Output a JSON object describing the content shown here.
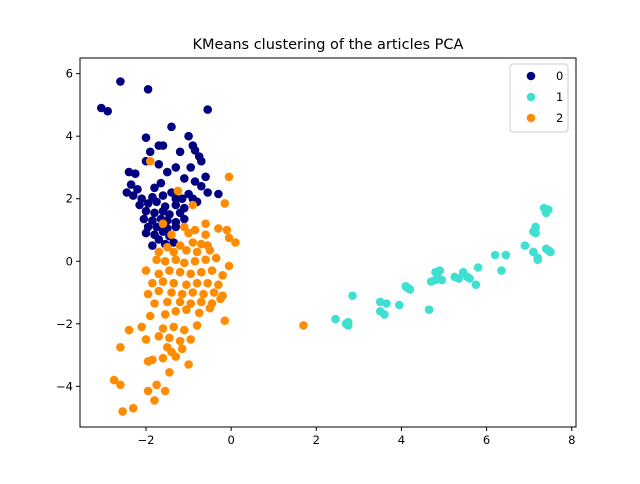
{
  "chart_data": {
    "type": "scatter",
    "title": "KMeans clustering of the articles PCA",
    "xlabel": "",
    "ylabel": "",
    "xlim": [
      -3.55,
      8.1
    ],
    "ylim": [
      -5.3,
      6.5
    ],
    "xticks": [
      -2,
      0,
      2,
      4,
      6,
      8
    ],
    "yticks": [
      -4,
      -2,
      0,
      2,
      4,
      6
    ],
    "grid": false,
    "legend_position": "top-right",
    "series": [
      {
        "name": "0",
        "color": "#000080",
        "points": [
          [
            -2.6,
            5.75
          ],
          [
            -1.95,
            5.5
          ],
          [
            -3.05,
            4.9
          ],
          [
            -2.9,
            4.8
          ],
          [
            -0.55,
            4.85
          ],
          [
            -1.4,
            4.3
          ],
          [
            -1.0,
            4.0
          ],
          [
            -2.0,
            3.95
          ],
          [
            -1.7,
            3.7
          ],
          [
            -1.6,
            3.7
          ],
          [
            -1.9,
            3.5
          ],
          [
            -0.9,
            3.7
          ],
          [
            -1.2,
            3.5
          ],
          [
            -0.85,
            3.55
          ],
          [
            -0.75,
            3.35
          ],
          [
            -2.0,
            3.2
          ],
          [
            -1.7,
            3.1
          ],
          [
            -1.3,
            3.0
          ],
          [
            -0.95,
            3.0
          ],
          [
            -0.7,
            3.2
          ],
          [
            -2.4,
            2.85
          ],
          [
            -2.25,
            2.8
          ],
          [
            -1.5,
            2.85
          ],
          [
            -1.1,
            2.65
          ],
          [
            -0.85,
            2.55
          ],
          [
            -0.6,
            2.7
          ],
          [
            -1.65,
            2.5
          ],
          [
            -0.7,
            2.4
          ],
          [
            -2.35,
            2.45
          ],
          [
            -2.2,
            2.3
          ],
          [
            -1.8,
            2.35
          ],
          [
            -1.4,
            2.2
          ],
          [
            -1.0,
            2.15
          ],
          [
            -0.3,
            2.15
          ],
          [
            -0.55,
            2.2
          ],
          [
            -2.45,
            2.2
          ],
          [
            -2.3,
            2.1
          ],
          [
            -2.1,
            2.0
          ],
          [
            -1.85,
            2.05
          ],
          [
            -1.6,
            2.1
          ],
          [
            -1.3,
            2.0
          ],
          [
            -1.15,
            2.0
          ],
          [
            -0.9,
            2.0
          ],
          [
            -2.15,
            1.8
          ],
          [
            -1.95,
            1.85
          ],
          [
            -1.75,
            1.9
          ],
          [
            -1.55,
            1.75
          ],
          [
            -1.3,
            1.8
          ],
          [
            -1.1,
            1.7
          ],
          [
            -0.8,
            1.9
          ],
          [
            -2.0,
            1.6
          ],
          [
            -1.8,
            1.55
          ],
          [
            -1.6,
            1.6
          ],
          [
            -1.45,
            1.5
          ],
          [
            -1.2,
            1.55
          ],
          [
            -2.05,
            1.35
          ],
          [
            -1.85,
            1.3
          ],
          [
            -1.65,
            1.35
          ],
          [
            -1.5,
            1.3
          ],
          [
            -1.3,
            1.25
          ],
          [
            -1.1,
            1.35
          ],
          [
            -1.95,
            1.1
          ],
          [
            -1.75,
            1.1
          ],
          [
            -1.5,
            1.05
          ],
          [
            -1.3,
            1.1
          ],
          [
            -2.0,
            0.9
          ],
          [
            -1.8,
            0.85
          ],
          [
            -1.6,
            0.95
          ],
          [
            -1.45,
            0.8
          ],
          [
            -1.7,
            0.7
          ],
          [
            -1.85,
            0.5
          ],
          [
            -1.55,
            0.55
          ],
          [
            -1.35,
            0.6
          ]
        ]
      },
      {
        "name": "1",
        "color": "#40E0D0",
        "points": [
          [
            7.35,
            1.7
          ],
          [
            7.45,
            1.65
          ],
          [
            7.4,
            1.55
          ],
          [
            7.15,
            1.1
          ],
          [
            7.1,
            0.95
          ],
          [
            7.15,
            0.9
          ],
          [
            6.9,
            0.5
          ],
          [
            6.2,
            0.2
          ],
          [
            6.45,
            0.2
          ],
          [
            7.1,
            0.3
          ],
          [
            7.2,
            0.1
          ],
          [
            7.2,
            0.05
          ],
          [
            7.45,
            0.35
          ],
          [
            7.5,
            0.3
          ],
          [
            7.4,
            0.4
          ],
          [
            5.8,
            -0.2
          ],
          [
            6.35,
            -0.3
          ],
          [
            5.45,
            -0.35
          ],
          [
            5.35,
            -0.55
          ],
          [
            5.55,
            -0.5
          ],
          [
            5.6,
            -0.55
          ],
          [
            5.25,
            -0.5
          ],
          [
            4.9,
            -0.3
          ],
          [
            4.8,
            -0.35
          ],
          [
            4.85,
            -0.5
          ],
          [
            4.95,
            -0.6
          ],
          [
            4.8,
            -0.6
          ],
          [
            4.7,
            -0.65
          ],
          [
            5.75,
            -0.75
          ],
          [
            4.15,
            -0.85
          ],
          [
            4.2,
            -0.9
          ],
          [
            4.1,
            -0.8
          ],
          [
            2.85,
            -1.1
          ],
          [
            3.5,
            -1.3
          ],
          [
            3.65,
            -1.35
          ],
          [
            3.95,
            -1.4
          ],
          [
            3.5,
            -1.6
          ],
          [
            3.6,
            -1.7
          ],
          [
            4.65,
            -1.55
          ],
          [
            2.45,
            -1.85
          ],
          [
            2.7,
            -2.0
          ],
          [
            2.75,
            -2.05
          ],
          [
            2.75,
            -1.95
          ]
        ]
      },
      {
        "name": "2",
        "color": "#FF8C00",
        "points": [
          [
            -1.9,
            3.2
          ],
          [
            -1.25,
            2.25
          ],
          [
            -0.05,
            2.7
          ],
          [
            -0.9,
            1.8
          ],
          [
            -0.15,
            1.85
          ],
          [
            -1.6,
            1.2
          ],
          [
            -1.1,
            1.1
          ],
          [
            -0.6,
            1.2
          ],
          [
            -0.85,
            1.0
          ],
          [
            -0.1,
            1.0
          ],
          [
            -1.4,
            0.85
          ],
          [
            -1.0,
            0.9
          ],
          [
            -0.6,
            0.85
          ],
          [
            -0.3,
            1.05
          ],
          [
            -0.05,
            0.75
          ],
          [
            0.1,
            0.6
          ],
          [
            -1.7,
            0.3
          ],
          [
            -1.5,
            0.45
          ],
          [
            -1.2,
            0.5
          ],
          [
            -0.9,
            0.6
          ],
          [
            -0.7,
            0.55
          ],
          [
            -0.55,
            0.5
          ],
          [
            -1.35,
            0.3
          ],
          [
            -1.05,
            0.35
          ],
          [
            -0.8,
            0.3
          ],
          [
            -0.5,
            0.35
          ],
          [
            -1.75,
            0.05
          ],
          [
            -1.55,
            0.0
          ],
          [
            -1.3,
            0.05
          ],
          [
            -1.1,
            -0.05
          ],
          [
            -0.85,
            0.0
          ],
          [
            -0.6,
            0.05
          ],
          [
            -0.35,
            0.1
          ],
          [
            -2.0,
            -0.3
          ],
          [
            -1.7,
            -0.4
          ],
          [
            -1.45,
            -0.3
          ],
          [
            -1.2,
            -0.35
          ],
          [
            -0.95,
            -0.4
          ],
          [
            -0.7,
            -0.35
          ],
          [
            -0.45,
            -0.3
          ],
          [
            -0.2,
            -0.45
          ],
          [
            -0.05,
            -0.15
          ],
          [
            -1.85,
            -0.7
          ],
          [
            -1.6,
            -0.65
          ],
          [
            -1.35,
            -0.7
          ],
          [
            -1.05,
            -0.75
          ],
          [
            -0.8,
            -0.7
          ],
          [
            -0.55,
            -0.7
          ],
          [
            -0.3,
            -0.75
          ],
          [
            -1.95,
            -1.05
          ],
          [
            -1.7,
            -0.95
          ],
          [
            -1.4,
            -1.0
          ],
          [
            -1.15,
            -1.05
          ],
          [
            -0.9,
            -1.0
          ],
          [
            -0.65,
            -1.05
          ],
          [
            -0.4,
            -1.0
          ],
          [
            -0.2,
            -1.1
          ],
          [
            -1.8,
            -1.35
          ],
          [
            -1.5,
            -1.3
          ],
          [
            -1.2,
            -1.3
          ],
          [
            -0.95,
            -1.35
          ],
          [
            -0.7,
            -1.3
          ],
          [
            -0.45,
            -1.35
          ],
          [
            -0.25,
            -1.2
          ],
          [
            -1.9,
            -1.75
          ],
          [
            -1.55,
            -1.7
          ],
          [
            -1.3,
            -1.6
          ],
          [
            -1.05,
            -1.55
          ],
          [
            -0.75,
            -1.65
          ],
          [
            -0.5,
            -1.5
          ],
          [
            -2.1,
            -2.1
          ],
          [
            -2.4,
            -2.2
          ],
          [
            -1.6,
            -2.15
          ],
          [
            -1.35,
            -2.1
          ],
          [
            -1.1,
            -2.2
          ],
          [
            -0.8,
            -2.05
          ],
          [
            -0.15,
            -1.9
          ],
          [
            -2.0,
            -2.5
          ],
          [
            -1.7,
            -2.4
          ],
          [
            -1.45,
            -2.45
          ],
          [
            -1.2,
            -2.55
          ],
          [
            -0.95,
            -2.5
          ],
          [
            -2.6,
            -2.75
          ],
          [
            -1.5,
            -2.75
          ],
          [
            -1.4,
            -2.9
          ],
          [
            -1.15,
            -2.8
          ],
          [
            -1.3,
            -3.05
          ],
          [
            -1.6,
            -3.1
          ],
          [
            -1.95,
            -3.2
          ],
          [
            -1.85,
            -3.15
          ],
          [
            -1.0,
            -3.3
          ],
          [
            -1.45,
            -3.55
          ],
          [
            -2.75,
            -3.8
          ],
          [
            -2.6,
            -3.95
          ],
          [
            -1.75,
            -3.95
          ],
          [
            -1.95,
            -4.15
          ],
          [
            -1.55,
            -4.15
          ],
          [
            -1.8,
            -4.45
          ],
          [
            -2.3,
            -4.7
          ],
          [
            -2.55,
            -4.8
          ],
          [
            1.7,
            -2.05
          ]
        ]
      }
    ]
  }
}
